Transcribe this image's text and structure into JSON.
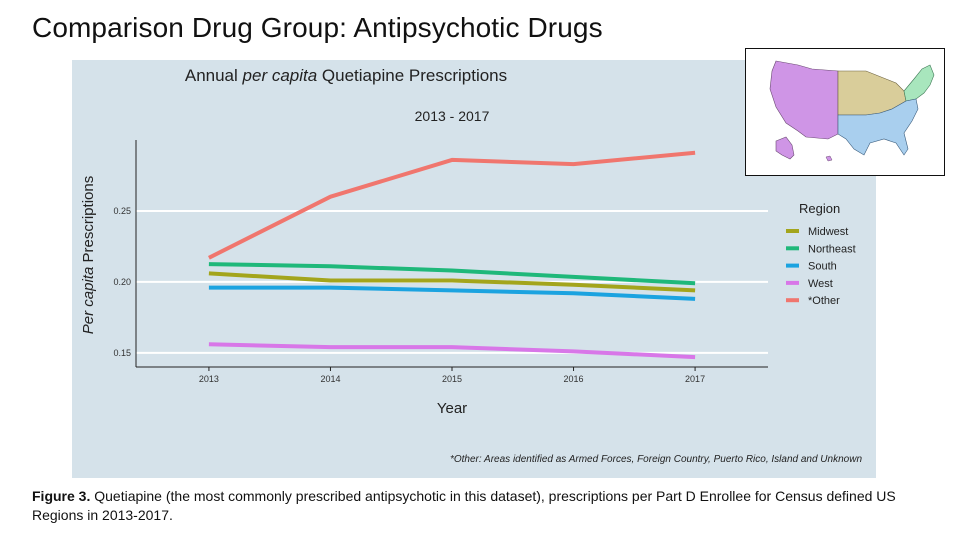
{
  "slide": {
    "title": "Comparison Drug Group: Antipsychotic Drugs",
    "caption_label": "Figure 3.",
    "caption_text": " Quetiapine (the most commonly prescribed antipsychotic in this dataset), prescriptions per Part D Enrollee for Census defined US Regions in 2013-2017."
  },
  "map": {
    "description": "US Census regions map",
    "regions": [
      {
        "name": "West",
        "color": "#cf95e6"
      },
      {
        "name": "Midwest",
        "color": "#d9cd9a"
      },
      {
        "name": "Northeast",
        "color": "#a8e6bd"
      },
      {
        "name": "South",
        "color": "#a9cfee"
      }
    ]
  },
  "chart_data": {
    "type": "line",
    "title_parts": [
      "Annual ",
      "per capita",
      " Quetiapine Prescriptions"
    ],
    "subtitle": "2013 - 2017",
    "xlabel": "Year",
    "ylabel_parts": [
      "Per capita",
      " Prescriptions"
    ],
    "x": [
      2013,
      2014,
      2015,
      2016,
      2017
    ],
    "x_tick_labels": [
      "2013",
      "2014",
      "2015",
      "2016",
      "2017"
    ],
    "y_ticks": [
      0.15,
      0.2,
      0.25
    ],
    "y_tick_labels": [
      "0.15",
      "0.20",
      "0.25"
    ],
    "xlim": [
      2012.4,
      2017.6
    ],
    "ylim": [
      0.14,
      0.3
    ],
    "grid": "horizontal major",
    "legend_title": "Region",
    "legend_position": "right",
    "series": [
      {
        "name": "Midwest",
        "color": "#a3a51c",
        "values": [
          0.206,
          0.201,
          0.201,
          0.198,
          0.194
        ]
      },
      {
        "name": "Northeast",
        "color": "#1fb87a",
        "values": [
          0.2125,
          0.211,
          0.208,
          0.2035,
          0.199
        ]
      },
      {
        "name": "South",
        "color": "#1ba3e0",
        "values": [
          0.196,
          0.196,
          0.194,
          0.192,
          0.188
        ]
      },
      {
        "name": "West",
        "color": "#d877e8",
        "values": [
          0.156,
          0.154,
          0.154,
          0.151,
          0.147
        ]
      },
      {
        "name": "*Other",
        "color": "#f0766e",
        "values": [
          0.217,
          0.26,
          0.286,
          0.283,
          0.291
        ]
      }
    ],
    "footnote": "*Other: Areas identified as Armed Forces, Foreign Country, Puerto Rico, Island and Unknown"
  }
}
